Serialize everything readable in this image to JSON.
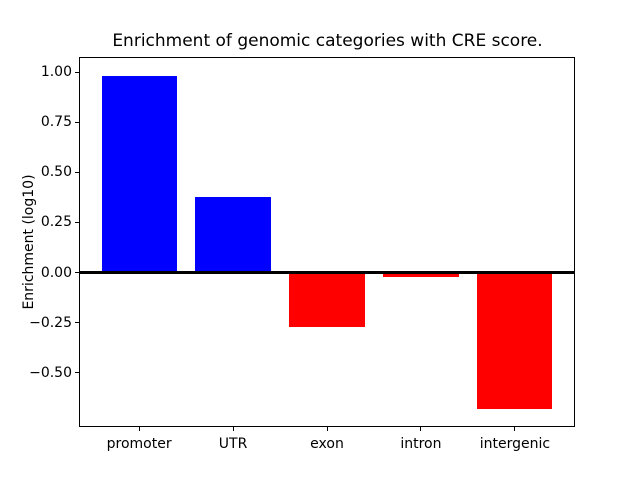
{
  "figure": {
    "background": "#ffffff",
    "axis_color": "#000000"
  },
  "chart_data": {
    "type": "bar",
    "title": "Enrichment of genomic categories with CRE score.",
    "xlabel": "",
    "ylabel": "Enrichment (log10)",
    "categories": [
      "promoter",
      "UTR",
      "exon",
      "intron",
      "intergenic"
    ],
    "values": [
      0.98,
      0.375,
      -0.27,
      -0.02,
      -0.68
    ],
    "bar_colors": [
      "#0000ff",
      "#0000ff",
      "#ff0000",
      "#ff0000",
      "#ff0000"
    ],
    "positive_color": "#0000ff",
    "negative_color": "#ff0000",
    "bar_width_fraction": 0.8,
    "ylim": [
      -0.77,
      1.075
    ],
    "yticks": {
      "values": [
        1.0,
        0.75,
        0.5,
        0.25,
        0.0,
        -0.25,
        -0.5
      ],
      "labels": [
        "1.00",
        "0.75",
        "0.50",
        "0.25",
        "0.00",
        "−0.25",
        "−0.50"
      ]
    },
    "grid": false,
    "legend": null,
    "zero_line": true,
    "zero_line_color": "#000000"
  }
}
